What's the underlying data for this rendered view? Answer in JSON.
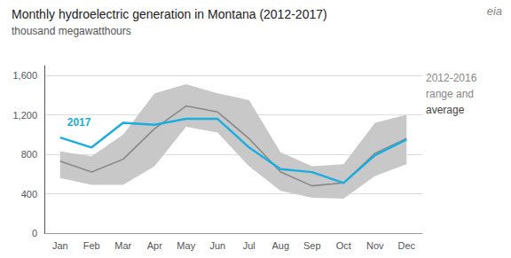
{
  "chart_data": {
    "type": "line",
    "title": "Monthly hydroelectric generation in Montana (2012-2017)",
    "subtitle": "thousand megawatthours",
    "categories": [
      "Jan",
      "Feb",
      "Mar",
      "Apr",
      "May",
      "Jun",
      "Jul",
      "Aug",
      "Sep",
      "Oct",
      "Nov",
      "Dec"
    ],
    "series": [
      {
        "type": "range",
        "color": "#C8C8C8",
        "low": [
          560,
          490,
          490,
          680,
          1080,
          1020,
          680,
          430,
          360,
          350,
          580,
          700
        ],
        "high": [
          830,
          780,
          1000,
          1420,
          1510,
          1420,
          1350,
          820,
          680,
          700,
          1120,
          1200
        ]
      },
      {
        "type": "line",
        "color": "#888888",
        "values": [
          730,
          620,
          750,
          1060,
          1290,
          1230,
          960,
          620,
          480,
          510,
          810,
          960
        ]
      },
      {
        "type": "line",
        "name": "2017",
        "color": "#1AAEE0",
        "values": [
          970,
          870,
          1120,
          1100,
          1160,
          1160,
          870,
          650,
          620,
          510,
          790,
          950
        ]
      }
    ],
    "ylim": [
      0,
      1700
    ],
    "yticks": [
      0,
      400,
      800,
      {
        "value": 1200,
        "label": "1,200"
      },
      {
        "value": 1600,
        "label": "1,600"
      }
    ],
    "grid": true,
    "annotations": [
      {
        "text": "2012-2016",
        "color": "#888888"
      },
      {
        "text": "range and",
        "color": "#888888"
      },
      {
        "text": "average",
        "color": "#444444"
      }
    ],
    "logo": "eia"
  }
}
